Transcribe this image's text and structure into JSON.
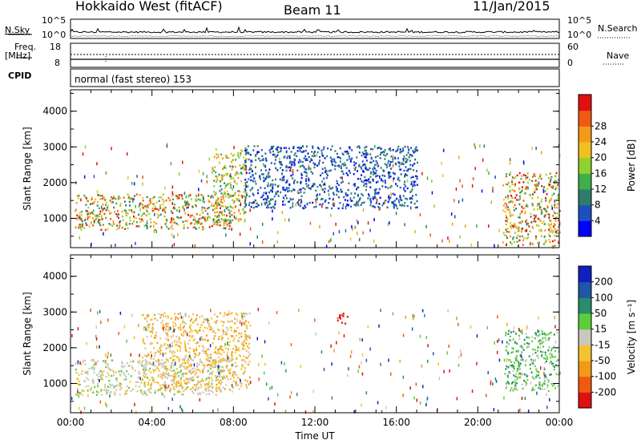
{
  "header": {
    "radar": "Hokkaido West (fitACF)",
    "beam": "Beam 11",
    "date": "11/Jan/2015"
  },
  "strip": {
    "nsky_label": "N.Sky",
    "nsearch_label": "N.Search",
    "noise_top": "10^5",
    "noise_bottom": "10^0",
    "freq_label": "Freq.",
    "freq_unit": "[MHz]",
    "freq_top": "18",
    "freq_bottom": "8",
    "nave_label": "Nave",
    "nave_top": "60",
    "nave_bottom": "0",
    "cpid_label": "CPID",
    "cpid_text": "normal (fast stereo) 153"
  },
  "chart_data": [
    {
      "type": "heatmap",
      "title": "",
      "xlabel": "Time UT",
      "ylabel": "Slant Range [km]",
      "xticks": [
        "00:00",
        "04:00",
        "08:00",
        "12:00",
        "16:00",
        "20:00",
        "00:00"
      ],
      "xlim_hours": [
        0,
        24
      ],
      "yticks": [
        "1000",
        "2000",
        "3000",
        "4000"
      ],
      "ylim": [
        180,
        4600
      ],
      "colorbar": {
        "label": "Power [dB]",
        "ticks": [
          "4",
          "8",
          "12",
          "16",
          "20",
          "24",
          "28"
        ],
        "colors": [
          "#0000ff",
          "#1e4fbf",
          "#2e7d6a",
          "#3fae4b",
          "#8fd230",
          "#f0c020",
          "#f39a18",
          "#f05a10",
          "#e01010"
        ]
      },
      "regions": [
        {
          "t": [
            0.2,
            7.8
          ],
          "r": [
            700,
            1700
          ],
          "level": "mixed-high"
        },
        {
          "t": [
            7.0,
            8.6
          ],
          "r": [
            900,
            3000
          ],
          "level": "medium"
        },
        {
          "t": [
            21.2,
            24.0
          ],
          "r": [
            250,
            2300
          ],
          "level": "mixed-high"
        },
        {
          "t": [
            8.5,
            17.0
          ],
          "r": [
            1300,
            3050
          ],
          "level": "low"
        }
      ]
    },
    {
      "type": "heatmap",
      "title": "",
      "xlabel": "Time UT",
      "ylabel": "Slant Range [km]",
      "xticks": [
        "00:00",
        "04:00",
        "08:00",
        "12:00",
        "16:00",
        "20:00",
        "00:00"
      ],
      "xlim_hours": [
        0,
        24
      ],
      "yticks": [
        "1000",
        "2000",
        "3000",
        "4000"
      ],
      "ylim": [
        180,
        4600
      ],
      "colorbar": {
        "label": "Velocity [m s⁻¹]",
        "ticks": [
          "200",
          "100",
          "50",
          "15",
          "-15",
          "-50",
          "-100",
          "-200"
        ],
        "colors": [
          "#1020c0",
          "#1f56a8",
          "#2a8c6a",
          "#5ccc3a",
          "#c8c8c0",
          "#f5c230",
          "#f29a18",
          "#f05a10",
          "#e01010"
        ]
      },
      "regions": [
        {
          "t": [
            0.2,
            7.5
          ],
          "r": [
            700,
            1700
          ],
          "level": "near-zero"
        },
        {
          "t": [
            3.5,
            8.8
          ],
          "r": [
            800,
            3000
          ],
          "level": "negative-small"
        },
        {
          "t": [
            21.3,
            24.0
          ],
          "r": [
            800,
            2500
          ],
          "level": "positive-small"
        },
        {
          "t": [
            13.0,
            13.6
          ],
          "r": [
            2700,
            3050
          ],
          "level": "negative-large"
        }
      ]
    }
  ]
}
